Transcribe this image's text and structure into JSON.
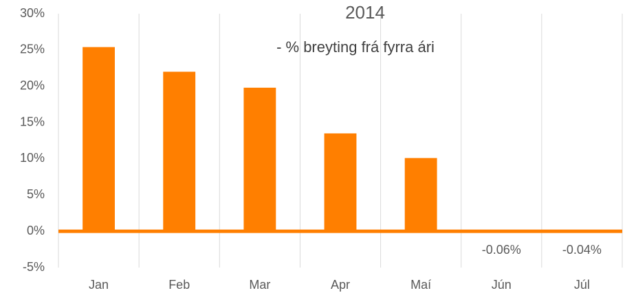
{
  "chart_data": {
    "type": "bar",
    "title": "2014",
    "subtitle": "- % breyting frá fyrra ári",
    "categories": [
      "Jan",
      "Feb",
      "Mar",
      "Apr",
      "Maí",
      "Jún",
      "Júl"
    ],
    "values": [
      25.4,
      22.0,
      19.8,
      13.5,
      10.1,
      -0.06,
      -0.04
    ],
    "value_labels": [
      null,
      null,
      null,
      null,
      null,
      "-0.06%",
      "-0.04%"
    ],
    "color": "#ff7f00",
    "ylim": [
      -5,
      30
    ],
    "yticks": [
      {
        "value": -5,
        "label": "-5%"
      },
      {
        "value": 0,
        "label": "0%"
      },
      {
        "value": 5,
        "label": "5%"
      },
      {
        "value": 10,
        "label": "10%"
      },
      {
        "value": 15,
        "label": "15%"
      },
      {
        "value": 20,
        "label": "20%"
      },
      {
        "value": 25,
        "label": "25%"
      },
      {
        "value": 30,
        "label": "30%"
      }
    ]
  }
}
